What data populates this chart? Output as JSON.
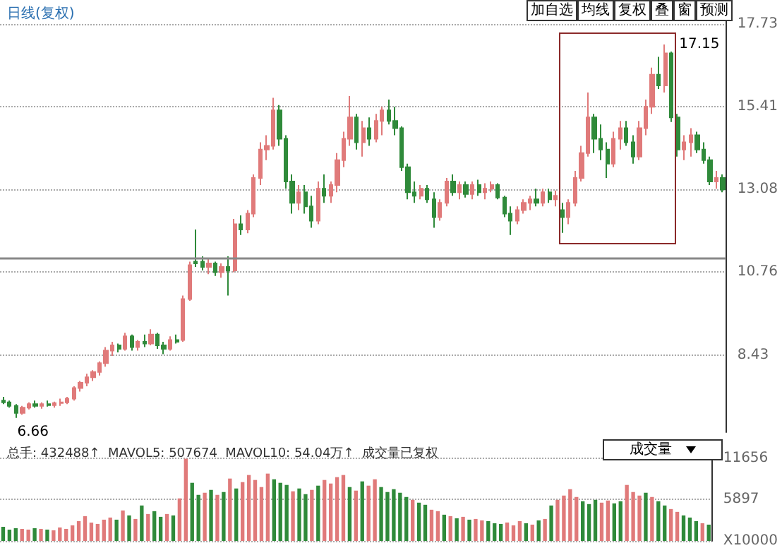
{
  "chart_data": [
    {
      "type": "candlestick",
      "title": "日线(复权)",
      "annotations": [
        "加自选",
        "均线",
        "复权",
        "叠",
        "窗",
        "预测",
        "17.15",
        "6.66"
      ],
      "categories": [
        null,
        null,
        null,
        null,
        null,
        null,
        null,
        null,
        null,
        null,
        null,
        null,
        null,
        null,
        null,
        null,
        null,
        null,
        null,
        null,
        null,
        null,
        null,
        null,
        null,
        null,
        null,
        null,
        null,
        null,
        null,
        null,
        null,
        null,
        null,
        null,
        null,
        null,
        null,
        null,
        null,
        null,
        null,
        null,
        null,
        null,
        null,
        null,
        null,
        null,
        null,
        null,
        null,
        null,
        null,
        null,
        null,
        null,
        null,
        null,
        null,
        null,
        null,
        null,
        null,
        null,
        null,
        null,
        null,
        null,
        null,
        null,
        null,
        null,
        null,
        null,
        null,
        null,
        null,
        null,
        null,
        null,
        null,
        null,
        null,
        null,
        null,
        null,
        null,
        null,
        null,
        null,
        null,
        null,
        null,
        null,
        null,
        null,
        null,
        null,
        null,
        null,
        null,
        null,
        null,
        null,
        null,
        null,
        null,
        null,
        null,
        null,
        null
      ],
      "ohlc": [
        [
          7.15,
          7.25,
          7.05,
          7.1
        ],
        [
          7.1,
          7.15,
          6.95,
          7.0
        ],
        [
          7.0,
          7.05,
          6.66,
          6.8
        ],
        [
          6.8,
          7.0,
          6.75,
          6.95
        ],
        [
          6.95,
          7.1,
          6.9,
          7.05
        ],
        [
          7.05,
          7.15,
          6.95,
          7.0
        ],
        [
          7.0,
          7.1,
          6.92,
          7.05
        ],
        [
          7.05,
          7.15,
          6.98,
          7.02
        ],
        [
          7.02,
          7.12,
          6.95,
          7.08
        ],
        [
          7.08,
          7.2,
          7.0,
          7.1
        ],
        [
          7.1,
          7.25,
          7.05,
          7.2
        ],
        [
          7.2,
          7.55,
          7.15,
          7.5
        ],
        [
          7.5,
          7.7,
          7.4,
          7.65
        ],
        [
          7.65,
          7.9,
          7.55,
          7.8
        ],
        [
          7.8,
          8.0,
          7.7,
          7.95
        ],
        [
          7.95,
          8.25,
          7.85,
          8.2
        ],
        [
          8.2,
          8.65,
          8.1,
          8.55
        ],
        [
          8.55,
          8.8,
          8.4,
          8.7
        ],
        [
          8.7,
          8.75,
          8.5,
          8.6
        ],
        [
          8.6,
          9.05,
          8.55,
          8.95
        ],
        [
          8.95,
          9.0,
          8.55,
          8.65
        ],
        [
          8.65,
          8.85,
          8.55,
          8.8
        ],
        [
          8.8,
          9.0,
          8.65,
          8.75
        ],
        [
          8.75,
          9.15,
          8.7,
          9.0
        ],
        [
          9.0,
          9.05,
          8.6,
          8.7
        ],
        [
          8.7,
          8.8,
          8.45,
          8.6
        ],
        [
          8.6,
          8.95,
          8.55,
          8.85
        ],
        [
          8.85,
          9.0,
          8.75,
          8.8
        ],
        [
          8.85,
          10.1,
          8.8,
          10.0
        ],
        [
          10.0,
          11.05,
          9.95,
          10.95
        ],
        [
          11.05,
          11.95,
          10.9,
          11.0
        ],
        [
          11.05,
          11.2,
          10.8,
          10.9
        ],
        [
          10.9,
          11.15,
          10.7,
          11.0
        ],
        [
          11.0,
          11.05,
          10.65,
          10.75
        ],
        [
          10.75,
          11.0,
          10.6,
          10.9
        ],
        [
          10.9,
          11.2,
          10.1,
          10.8
        ],
        [
          10.8,
          12.25,
          10.75,
          12.1
        ],
        [
          12.1,
          12.35,
          11.8,
          11.95
        ],
        [
          11.95,
          12.5,
          11.85,
          12.4
        ],
        [
          12.4,
          13.5,
          12.3,
          13.4
        ],
        [
          13.4,
          14.4,
          13.2,
          14.2
        ],
        [
          14.2,
          14.6,
          13.9,
          14.3
        ],
        [
          14.3,
          15.65,
          14.2,
          15.3
        ],
        [
          15.3,
          15.45,
          14.3,
          14.5
        ],
        [
          14.5,
          14.6,
          13.1,
          13.3
        ],
        [
          13.3,
          13.5,
          12.4,
          12.7
        ],
        [
          12.7,
          13.2,
          12.5,
          13.0
        ],
        [
          13.0,
          13.2,
          12.4,
          12.6
        ],
        [
          12.6,
          12.9,
          12.0,
          12.2
        ],
        [
          12.2,
          13.3,
          12.1,
          13.1
        ],
        [
          13.1,
          13.5,
          12.7,
          12.9
        ],
        [
          12.9,
          13.3,
          12.7,
          13.2
        ],
        [
          13.2,
          14.1,
          13.0,
          13.9
        ],
        [
          13.9,
          14.7,
          13.7,
          14.5
        ],
        [
          14.5,
          15.7,
          14.3,
          15.1
        ],
        [
          15.1,
          15.2,
          14.2,
          14.4
        ],
        [
          14.4,
          15.0,
          14.0,
          14.8
        ],
        [
          14.8,
          15.1,
          14.3,
          14.5
        ],
        [
          14.5,
          15.2,
          14.4,
          15.0
        ],
        [
          15.0,
          15.4,
          14.6,
          15.3
        ],
        [
          15.3,
          15.6,
          14.9,
          15.0
        ],
        [
          15.0,
          15.4,
          14.6,
          14.8
        ],
        [
          14.8,
          14.85,
          13.6,
          13.7
        ],
        [
          13.7,
          13.8,
          12.8,
          13.0
        ],
        [
          13.0,
          13.3,
          12.7,
          12.9
        ],
        [
          12.9,
          13.2,
          12.8,
          13.1
        ],
        [
          13.1,
          13.2,
          12.7,
          12.8
        ],
        [
          12.8,
          13.0,
          12.0,
          12.3
        ],
        [
          12.3,
          12.8,
          12.2,
          12.7
        ],
        [
          12.7,
          13.4,
          12.6,
          13.3
        ],
        [
          13.3,
          13.5,
          12.9,
          13.0
        ],
        [
          13.0,
          13.3,
          12.8,
          13.2
        ],
        [
          13.2,
          13.3,
          12.85,
          12.95
        ],
        [
          12.95,
          13.3,
          12.8,
          13.2
        ],
        [
          13.2,
          13.35,
          12.9,
          13.0
        ],
        [
          13.0,
          13.25,
          12.8,
          13.1
        ],
        [
          13.1,
          13.3,
          13.0,
          13.2
        ],
        [
          13.2,
          13.25,
          12.8,
          12.85
        ],
        [
          12.85,
          12.9,
          12.3,
          12.4
        ],
        [
          12.4,
          12.6,
          11.8,
          12.2
        ],
        [
          12.2,
          12.6,
          12.1,
          12.5
        ],
        [
          12.5,
          12.8,
          12.4,
          12.7
        ],
        [
          12.7,
          12.9,
          12.5,
          12.8
        ],
        [
          12.8,
          13.1,
          12.6,
          12.7
        ],
        [
          12.7,
          13.1,
          12.6,
          13.0
        ],
        [
          13.0,
          13.1,
          12.7,
          12.8
        ],
        [
          12.8,
          13.05,
          12.6,
          12.9
        ],
        [
          12.5,
          12.7,
          11.86,
          12.3
        ],
        [
          12.3,
          12.8,
          12.1,
          12.7
        ],
        [
          12.7,
          13.6,
          12.6,
          13.4
        ],
        [
          13.4,
          14.3,
          13.3,
          14.1
        ],
        [
          14.1,
          15.8,
          14.0,
          15.1
        ],
        [
          15.1,
          15.2,
          14.1,
          14.5
        ],
        [
          14.5,
          14.9,
          13.9,
          14.2
        ],
        [
          14.2,
          14.4,
          13.4,
          13.8
        ],
        [
          13.8,
          14.7,
          13.7,
          14.5
        ],
        [
          14.5,
          15.0,
          14.2,
          14.8
        ],
        [
          14.8,
          15.0,
          14.3,
          14.4
        ],
        [
          14.4,
          14.6,
          13.8,
          14.0
        ],
        [
          14.0,
          15.0,
          13.9,
          14.8
        ],
        [
          14.8,
          15.6,
          14.6,
          15.4
        ],
        [
          15.4,
          16.5,
          15.2,
          16.3
        ],
        [
          16.3,
          16.8,
          15.9,
          16.0
        ],
        [
          16.0,
          17.15,
          15.8,
          16.9
        ],
        [
          16.9,
          16.95,
          14.97,
          15.1
        ],
        [
          15.1,
          15.2,
          14.0,
          14.2
        ],
        [
          14.2,
          14.6,
          13.9,
          14.4
        ],
        [
          14.4,
          14.8,
          14.0,
          14.6
        ],
        [
          14.6,
          14.7,
          14.1,
          14.2
        ],
        [
          14.2,
          14.4,
          13.8,
          13.9
        ],
        [
          13.9,
          14.0,
          13.2,
          13.3
        ],
        [
          13.3,
          13.6,
          13.1,
          13.4
        ],
        [
          13.4,
          13.5,
          13.0,
          13.08
        ]
      ],
      "colors": [
        "#2f8a3a",
        "#2f8a3a",
        "#2f8a3a",
        "#e07a7a",
        "#e07a7a",
        "#2f8a3a",
        "#e07a7a",
        "#2f8a3a",
        "#e07a7a",
        "#e07a7a",
        "#e07a7a",
        "#e07a7a",
        "#e07a7a",
        "#e07a7a",
        "#e07a7a",
        "#e07a7a",
        "#e07a7a",
        "#e07a7a",
        "#2f8a3a",
        "#e07a7a",
        "#2f8a3a",
        "#e07a7a",
        "#2f8a3a",
        "#e07a7a",
        "#2f8a3a",
        "#2f8a3a",
        "#e07a7a",
        "#2f8a3a",
        "#e07a7a",
        "#e07a7a",
        "#2f8a3a",
        "#2f8a3a",
        "#e07a7a",
        "#2f8a3a",
        "#e07a7a",
        "#2f8a3a",
        "#e07a7a",
        "#2f8a3a",
        "#e07a7a",
        "#e07a7a",
        "#e07a7a",
        "#e07a7a",
        "#e07a7a",
        "#2f8a3a",
        "#2f8a3a",
        "#2f8a3a",
        "#e07a7a",
        "#2f8a3a",
        "#2f8a3a",
        "#e07a7a",
        "#2f8a3a",
        "#e07a7a",
        "#e07a7a",
        "#e07a7a",
        "#e07a7a",
        "#2f8a3a",
        "#e07a7a",
        "#2f8a3a",
        "#e07a7a",
        "#e07a7a",
        "#2f8a3a",
        "#2f8a3a",
        "#2f8a3a",
        "#2f8a3a",
        "#2f8a3a",
        "#e07a7a",
        "#2f8a3a",
        "#2f8a3a",
        "#e07a7a",
        "#e07a7a",
        "#2f8a3a",
        "#e07a7a",
        "#2f8a3a",
        "#e07a7a",
        "#2f8a3a",
        "#e07a7a",
        "#e07a7a",
        "#2f8a3a",
        "#2f8a3a",
        "#2f8a3a",
        "#e07a7a",
        "#e07a7a",
        "#e07a7a",
        "#2f8a3a",
        "#e07a7a",
        "#2f8a3a",
        "#e07a7a",
        "#2f8a3a",
        "#e07a7a",
        "#e07a7a",
        "#e07a7a",
        "#e07a7a",
        "#2f8a3a",
        "#2f8a3a",
        "#2f8a3a",
        "#e07a7a",
        "#e07a7a",
        "#2f8a3a",
        "#2f8a3a",
        "#e07a7a",
        "#e07a7a",
        "#e07a7a",
        "#2f8a3a",
        "#e07a7a",
        "#2f8a3a",
        "#2f8a3a",
        "#e07a7a",
        "#e07a7a",
        "#2f8a3a",
        "#2f8a3a",
        "#2f8a3a",
        "#e07a7a",
        "#2f8a3a"
      ],
      "ylim": [
        6.26,
        18.16
      ],
      "yticks": [
        8.43,
        10.76,
        13.08,
        15.41,
        17.73
      ],
      "grid": "y",
      "ref_lines": [
        {
          "axis": "y",
          "value": 11.15,
          "color": "#888888"
        }
      ]
    },
    {
      "type": "bar",
      "title": "总手: 432488↑  MAVOL5: 507674  MAVOL10: 54.04万↑  成交量已复权",
      "annotations": [
        "成交量"
      ],
      "categories": [
        null,
        null,
        null,
        null,
        null,
        null,
        null,
        null,
        null,
        null,
        null,
        null,
        null,
        null,
        null,
        null,
        null,
        null,
        null,
        null,
        null,
        null,
        null,
        null,
        null,
        null,
        null,
        null,
        null,
        null,
        null,
        null,
        null,
        null,
        null,
        null,
        null,
        null,
        null,
        null,
        null,
        null,
        null,
        null,
        null,
        null,
        null,
        null,
        null,
        null,
        null,
        null,
        null,
        null,
        null,
        null,
        null,
        null,
        null,
        null,
        null,
        null,
        null,
        null,
        null,
        null,
        null,
        null,
        null,
        null,
        null,
        null,
        null,
        null,
        null,
        null,
        null,
        null,
        null,
        null,
        null,
        null,
        null,
        null,
        null,
        null,
        null,
        null,
        null,
        null,
        null,
        null,
        null,
        null,
        null,
        null,
        null,
        null,
        null,
        null,
        null,
        null,
        null,
        null,
        null,
        null,
        null,
        null,
        null,
        null,
        null,
        null,
        null
      ],
      "values": [
        2000,
        1600,
        1800,
        1700,
        1600,
        1800,
        1700,
        1600,
        1500,
        1900,
        1700,
        2200,
        2800,
        3500,
        2600,
        2400,
        3000,
        3300,
        3000,
        4300,
        3600,
        3100,
        5000,
        3800,
        4200,
        3400,
        3800,
        3600,
        6000,
        11600,
        8200,
        6500,
        6800,
        7200,
        6500,
        6900,
        8800,
        7400,
        8300,
        9300,
        8600,
        7600,
        9500,
        8700,
        8200,
        7900,
        7000,
        7400,
        6600,
        7200,
        7800,
        8600,
        8100,
        9000,
        9300,
        7600,
        7100,
        8400,
        7800,
        8700,
        7600,
        6900,
        7300,
        6800,
        6200,
        5800,
        5400,
        5100,
        4400,
        4200,
        3700,
        3500,
        3200,
        3400,
        3000,
        3100,
        2900,
        2800,
        2500,
        2400,
        2600,
        2200,
        2800,
        2500,
        2300,
        2900,
        3100,
        5000,
        5800,
        6400,
        7300,
        6200,
        5600,
        5200,
        5800,
        5400,
        5700,
        5300,
        5600,
        7900,
        6900,
        6400,
        6800,
        6200,
        5600,
        5000,
        4500,
        4100,
        3600,
        3300,
        2800,
        2500,
        2300
      ],
      "colors": [
        "#2f8a3a",
        "#2f8a3a",
        "#2f8a3a",
        "#e07a7a",
        "#e07a7a",
        "#2f8a3a",
        "#e07a7a",
        "#2f8a3a",
        "#e07a7a",
        "#e07a7a",
        "#e07a7a",
        "#e07a7a",
        "#e07a7a",
        "#e07a7a",
        "#e07a7a",
        "#e07a7a",
        "#e07a7a",
        "#e07a7a",
        "#2f8a3a",
        "#e07a7a",
        "#2f8a3a",
        "#e07a7a",
        "#2f8a3a",
        "#e07a7a",
        "#2f8a3a",
        "#2f8a3a",
        "#e07a7a",
        "#2f8a3a",
        "#e07a7a",
        "#e07a7a",
        "#2f8a3a",
        "#2f8a3a",
        "#e07a7a",
        "#2f8a3a",
        "#e07a7a",
        "#2f8a3a",
        "#e07a7a",
        "#2f8a3a",
        "#e07a7a",
        "#e07a7a",
        "#e07a7a",
        "#e07a7a",
        "#e07a7a",
        "#2f8a3a",
        "#2f8a3a",
        "#2f8a3a",
        "#e07a7a",
        "#2f8a3a",
        "#2f8a3a",
        "#e07a7a",
        "#2f8a3a",
        "#e07a7a",
        "#e07a7a",
        "#e07a7a",
        "#e07a7a",
        "#2f8a3a",
        "#e07a7a",
        "#2f8a3a",
        "#e07a7a",
        "#e07a7a",
        "#2f8a3a",
        "#2f8a3a",
        "#2f8a3a",
        "#2f8a3a",
        "#2f8a3a",
        "#e07a7a",
        "#2f8a3a",
        "#2f8a3a",
        "#e07a7a",
        "#e07a7a",
        "#2f8a3a",
        "#e07a7a",
        "#2f8a3a",
        "#e07a7a",
        "#2f8a3a",
        "#e07a7a",
        "#e07a7a",
        "#2f8a3a",
        "#2f8a3a",
        "#2f8a3a",
        "#e07a7a",
        "#e07a7a",
        "#e07a7a",
        "#2f8a3a",
        "#e07a7a",
        "#2f8a3a",
        "#e07a7a",
        "#2f8a3a",
        "#e07a7a",
        "#e07a7a",
        "#e07a7a",
        "#e07a7a",
        "#2f8a3a",
        "#2f8a3a",
        "#2f8a3a",
        "#e07a7a",
        "#e07a7a",
        "#2f8a3a",
        "#2f8a3a",
        "#e07a7a",
        "#e07a7a",
        "#e07a7a",
        "#2f8a3a",
        "#e07a7a",
        "#2f8a3a",
        "#2f8a3a",
        "#e07a7a",
        "#e07a7a",
        "#2f8a3a",
        "#2f8a3a",
        "#2f8a3a",
        "#e07a7a",
        "#2f8a3a"
      ],
      "ylim": [
        0,
        12950
      ],
      "yticks": [
        {
          "value": 0,
          "label": "X10000"
        },
        5897,
        11656
      ],
      "grid": "y"
    }
  ]
}
